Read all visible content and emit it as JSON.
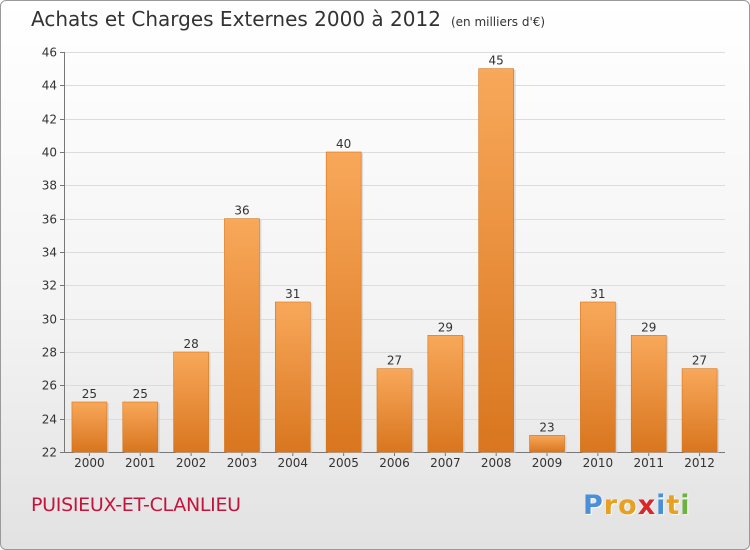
{
  "header": {
    "title": "Achats et Charges Externes 2000 à 2012",
    "subtitle": "(en milliers d'€)"
  },
  "footer": {
    "commune": "PUISIEUX-ET-CLANLIEU",
    "logo": [
      "P",
      "r",
      "o",
      "x",
      "i",
      "t",
      "i"
    ]
  },
  "colors": {
    "bar_light": "#f8a85a",
    "bar_dark": "#d9761f",
    "commune_text": "#c4143c",
    "logo": [
      "#4a90d9",
      "#e8a020",
      "#e8a020",
      "#d8262a",
      "#4a90d9",
      "#e8a020",
      "#6cb33e"
    ]
  },
  "chart_data": {
    "type": "bar",
    "categories": [
      "2000",
      "2001",
      "2002",
      "2003",
      "2004",
      "2005",
      "2006",
      "2007",
      "2008",
      "2009",
      "2010",
      "2011",
      "2012"
    ],
    "values": [
      25,
      25,
      28,
      36,
      31,
      40,
      27,
      29,
      45,
      23,
      31,
      29,
      27
    ],
    "ylim": [
      22,
      46
    ],
    "yticks": [
      22,
      24,
      26,
      28,
      30,
      32,
      34,
      36,
      38,
      40,
      42,
      44,
      46
    ],
    "grid": true
  }
}
